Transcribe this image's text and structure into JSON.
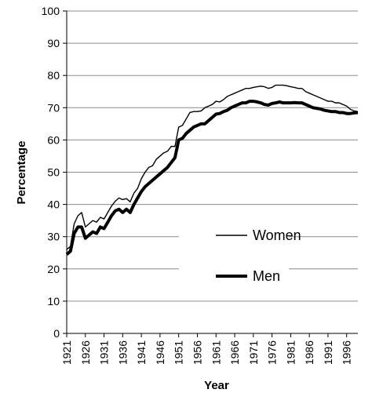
{
  "chart_data": {
    "type": "line",
    "xlabel": "Year",
    "ylabel": "Percentage",
    "xlim": [
      1921,
      1999
    ],
    "ylim": [
      0,
      100
    ],
    "y_ticks": [
      0,
      10,
      20,
      30,
      40,
      50,
      60,
      70,
      80,
      90,
      100
    ],
    "x_ticks": [
      1921,
      1926,
      1931,
      1936,
      1941,
      1946,
      1951,
      1956,
      1961,
      1966,
      1971,
      1976,
      1981,
      1986,
      1991,
      1996
    ],
    "grid": "horizontal",
    "legend_position": "center-right",
    "x": [
      1921,
      1922,
      1923,
      1924,
      1925,
      1926,
      1927,
      1928,
      1929,
      1930,
      1931,
      1932,
      1933,
      1934,
      1935,
      1936,
      1937,
      1938,
      1939,
      1940,
      1941,
      1942,
      1943,
      1944,
      1945,
      1946,
      1947,
      1948,
      1949,
      1950,
      1951,
      1952,
      1953,
      1954,
      1955,
      1956,
      1957,
      1958,
      1959,
      1960,
      1961,
      1962,
      1963,
      1964,
      1965,
      1966,
      1967,
      1968,
      1969,
      1970,
      1971,
      1972,
      1973,
      1974,
      1975,
      1976,
      1977,
      1978,
      1979,
      1980,
      1981,
      1982,
      1983,
      1984,
      1985,
      1986,
      1987,
      1988,
      1989,
      1990,
      1991,
      1992,
      1993,
      1994,
      1995,
      1996,
      1997,
      1998,
      1999
    ],
    "series": [
      {
        "name": "Women",
        "color": "#000000",
        "line_weight": "thin",
        "values": [
          26,
          27,
          34,
          36.5,
          37.5,
          33,
          34,
          35,
          34.5,
          36,
          35.5,
          37.5,
          39.5,
          41,
          42,
          41.5,
          41.8,
          40.8,
          43.5,
          45,
          48,
          50,
          51.5,
          52,
          54,
          55,
          56,
          56.5,
          58,
          58,
          64,
          64.5,
          66.5,
          68.5,
          68.8,
          68.8,
          69,
          70,
          70.5,
          71,
          72,
          71.8,
          72.5,
          73.5,
          74,
          74.5,
          75,
          75.5,
          76,
          76,
          76.3,
          76.5,
          76.7,
          76.5,
          76,
          76.3,
          77,
          77,
          77,
          76.8,
          76.5,
          76.3,
          76,
          76,
          75,
          74.5,
          74,
          73.5,
          73,
          72.5,
          72,
          72,
          71.5,
          71.5,
          71,
          70.5,
          69.5,
          69,
          68.8
        ]
      },
      {
        "name": "Men",
        "color": "#000000",
        "line_weight": "thick",
        "values": [
          24.5,
          25.5,
          31,
          33,
          33,
          29.5,
          30.5,
          31.5,
          31,
          33,
          32.5,
          34.5,
          36.5,
          38,
          38.5,
          37.5,
          38.5,
          37.5,
          40,
          42,
          44,
          45.5,
          46.5,
          47.5,
          48.5,
          49.5,
          50.5,
          51.5,
          53,
          54.5,
          60,
          60.5,
          62,
          63,
          64,
          64.5,
          65,
          65,
          66,
          67,
          68,
          68.2,
          68.8,
          69.2,
          70,
          70.5,
          71,
          71.5,
          71.5,
          72,
          72,
          71.8,
          71.5,
          71,
          70.8,
          71.3,
          71.5,
          71.8,
          71.5,
          71.5,
          71.5,
          71.6,
          71.5,
          71.5,
          71,
          70.5,
          70,
          69.8,
          69.6,
          69.2,
          69,
          68.8,
          68.8,
          68.5,
          68.5,
          68.2,
          68.2,
          68.4,
          68.5
        ]
      }
    ]
  }
}
